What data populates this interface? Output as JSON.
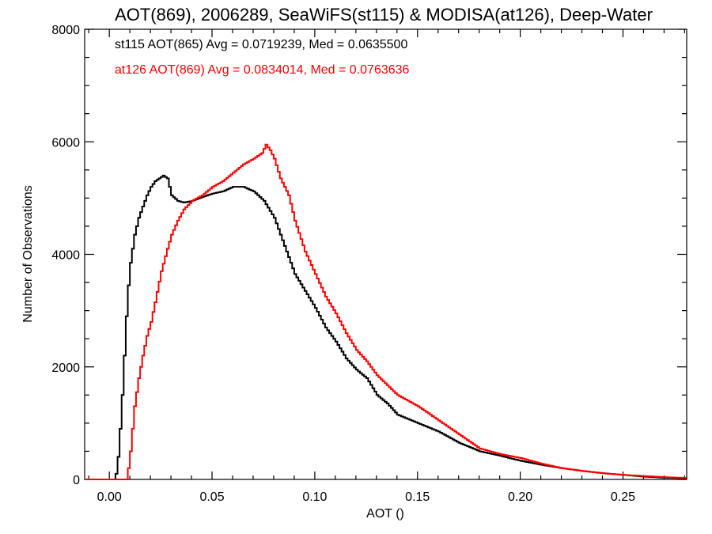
{
  "chart_data": {
    "type": "line",
    "title": "AOT(869), 2006289, SeaWiFS(st115) & MODISA(at126), Deep-Water",
    "xlabel": "AOT ()",
    "ylabel": "Number of Observations",
    "xlim": [
      -0.012,
      0.281
    ],
    "ylim": [
      0,
      8000
    ],
    "xticks": [
      0.0,
      0.05,
      0.1,
      0.15,
      0.2,
      0.25
    ],
    "xtick_labels": [
      "0.00",
      "0.05",
      "0.10",
      "0.15",
      "0.20",
      "0.25"
    ],
    "yticks": [
      0,
      2000,
      4000,
      6000,
      8000
    ],
    "ytick_labels": [
      "0",
      "2000",
      "4000",
      "6000",
      "8000"
    ],
    "grid": false,
    "annotations": [
      {
        "text": "st115 AOT(865) Avg = 0.0719239, Med = 0.0635500",
        "color": "#000000"
      },
      {
        "text": "at126 AOT(869) Avg = 0.0834014, Med = 0.0763636",
        "color": "#ff0000"
      }
    ],
    "series": [
      {
        "color": "#000000",
        "x": [
          -0.012,
          0.002,
          0.003,
          0.004,
          0.005,
          0.006,
          0.007,
          0.008,
          0.009,
          0.01,
          0.012,
          0.014,
          0.016,
          0.018,
          0.02,
          0.022,
          0.024,
          0.026,
          0.028,
          0.03,
          0.033,
          0.036,
          0.04,
          0.045,
          0.05,
          0.055,
          0.06,
          0.065,
          0.068,
          0.07,
          0.075,
          0.08,
          0.085,
          0.09,
          0.095,
          0.1,
          0.105,
          0.11,
          0.115,
          0.12,
          0.125,
          0.13,
          0.135,
          0.14,
          0.15,
          0.16,
          0.17,
          0.18,
          0.19,
          0.2,
          0.21,
          0.22,
          0.23,
          0.24,
          0.25,
          0.26,
          0.27,
          0.281
        ],
        "y": [
          0,
          0,
          100,
          400,
          900,
          1500,
          2200,
          2900,
          3450,
          3850,
          4350,
          4650,
          4850,
          5050,
          5200,
          5300,
          5350,
          5400,
          5350,
          5050,
          4950,
          4920,
          4950,
          5020,
          5080,
          5120,
          5200,
          5200,
          5150,
          5120,
          4950,
          4650,
          4150,
          3650,
          3350,
          3050,
          2700,
          2450,
          2150,
          1950,
          1800,
          1500,
          1350,
          1150,
          1000,
          850,
          650,
          500,
          420,
          330,
          260,
          200,
          150,
          110,
          80,
          50,
          30,
          20
        ]
      },
      {
        "color": "#ff0000",
        "x": [
          -0.012,
          0.008,
          0.009,
          0.01,
          0.011,
          0.012,
          0.014,
          0.016,
          0.018,
          0.02,
          0.022,
          0.025,
          0.028,
          0.03,
          0.033,
          0.036,
          0.04,
          0.045,
          0.05,
          0.055,
          0.06,
          0.065,
          0.07,
          0.074,
          0.076,
          0.078,
          0.08,
          0.083,
          0.087,
          0.09,
          0.095,
          0.1,
          0.105,
          0.11,
          0.115,
          0.12,
          0.125,
          0.13,
          0.14,
          0.15,
          0.16,
          0.17,
          0.18,
          0.19,
          0.2,
          0.21,
          0.22,
          0.23,
          0.24,
          0.25,
          0.26,
          0.27,
          0.281
        ],
        "y": [
          0,
          0,
          200,
          500,
          900,
          1300,
          1800,
          2200,
          2550,
          2800,
          3150,
          3700,
          4100,
          4350,
          4600,
          4800,
          4950,
          5050,
          5200,
          5300,
          5450,
          5600,
          5700,
          5800,
          5950,
          5850,
          5700,
          5350,
          5050,
          4600,
          4050,
          3650,
          3250,
          2950,
          2600,
          2300,
          2100,
          1850,
          1500,
          1300,
          1050,
          800,
          550,
          450,
          380,
          280,
          200,
          150,
          110,
          80,
          60,
          40,
          25
        ]
      }
    ]
  }
}
